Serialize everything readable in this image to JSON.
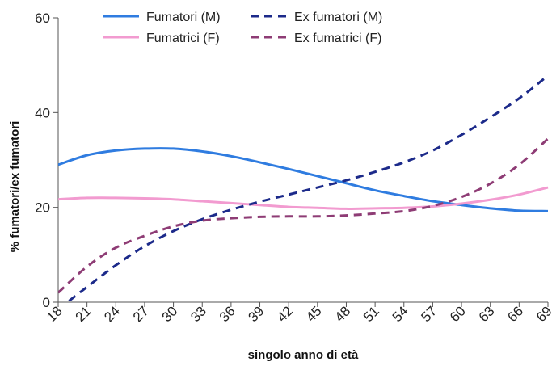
{
  "chart_data": {
    "type": "line",
    "title": "",
    "xlabel": "singolo anno di età",
    "ylabel": "% fumatori/ex fumatori",
    "xlim": [
      18,
      69
    ],
    "ylim": [
      0,
      60
    ],
    "x_ticks": [
      18,
      21,
      24,
      27,
      30,
      33,
      36,
      39,
      42,
      45,
      48,
      51,
      54,
      57,
      60,
      63,
      66,
      69
    ],
    "y_ticks": [
      0,
      20,
      40,
      60
    ],
    "grid": false,
    "legend_position": "top",
    "x": [
      18,
      21,
      24,
      27,
      30,
      33,
      36,
      39,
      42,
      45,
      48,
      51,
      54,
      57,
      60,
      63,
      66,
      69
    ],
    "series": [
      {
        "name": "Fumatori (M)",
        "color": "#2f7ce0",
        "dash": "solid",
        "values": [
          29.0,
          31.0,
          32.0,
          32.4,
          32.4,
          31.8,
          30.8,
          29.5,
          28.1,
          26.6,
          25.1,
          23.6,
          22.4,
          21.3,
          20.5,
          19.8,
          19.3,
          19.2
        ]
      },
      {
        "name": "Fumatrici (F)",
        "color": "#f29bd0",
        "dash": "solid",
        "values": [
          21.7,
          22.0,
          22.0,
          21.9,
          21.7,
          21.3,
          20.9,
          20.5,
          20.1,
          19.9,
          19.7,
          19.8,
          19.9,
          20.2,
          20.8,
          21.6,
          22.7,
          24.2
        ]
      },
      {
        "name": "Ex fumatori (M)",
        "color": "#1c2a8a",
        "dash": "dashed",
        "values": [
          -1.5,
          3.2,
          7.8,
          11.8,
          15.0,
          17.5,
          19.5,
          21.2,
          22.7,
          24.2,
          25.7,
          27.5,
          29.5,
          32.0,
          35.3,
          39.0,
          43.0,
          47.8
        ]
      },
      {
        "name": "Ex fumatrici (F)",
        "color": "#8e3c75",
        "dash": "dashed",
        "values": [
          2.0,
          7.5,
          11.5,
          14.0,
          16.0,
          17.2,
          17.7,
          18.0,
          18.1,
          18.1,
          18.3,
          18.7,
          19.2,
          20.3,
          22.2,
          25.0,
          29.0,
          34.5
        ]
      }
    ]
  }
}
